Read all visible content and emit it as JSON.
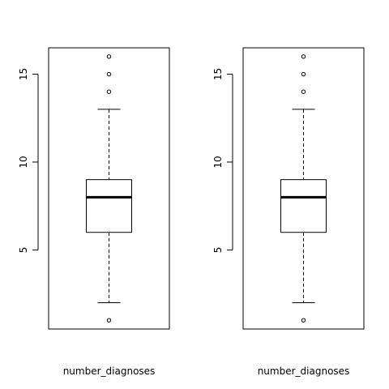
{
  "chart_data": [
    {
      "type": "box",
      "title": "",
      "xlabel": "number_diagnoses",
      "ylabel": "",
      "ylim": [
        0.5,
        16.5
      ],
      "yticks": [
        5,
        10,
        15
      ],
      "grid": false,
      "box": {
        "whisker_low": 2,
        "q1": 6,
        "median": 8,
        "q3": 9,
        "whisker_high": 13
      },
      "outliers": [
        1,
        14,
        15,
        16
      ]
    },
    {
      "type": "box",
      "title": "",
      "xlabel": "number_diagnoses",
      "ylabel": "",
      "ylim": [
        0.5,
        16.5
      ],
      "yticks": [
        5,
        10,
        15
      ],
      "grid": false,
      "box": {
        "whisker_low": 2,
        "q1": 6,
        "median": 8,
        "q3": 9,
        "whisker_high": 13
      },
      "outliers": [
        1,
        14,
        15,
        16
      ]
    }
  ]
}
